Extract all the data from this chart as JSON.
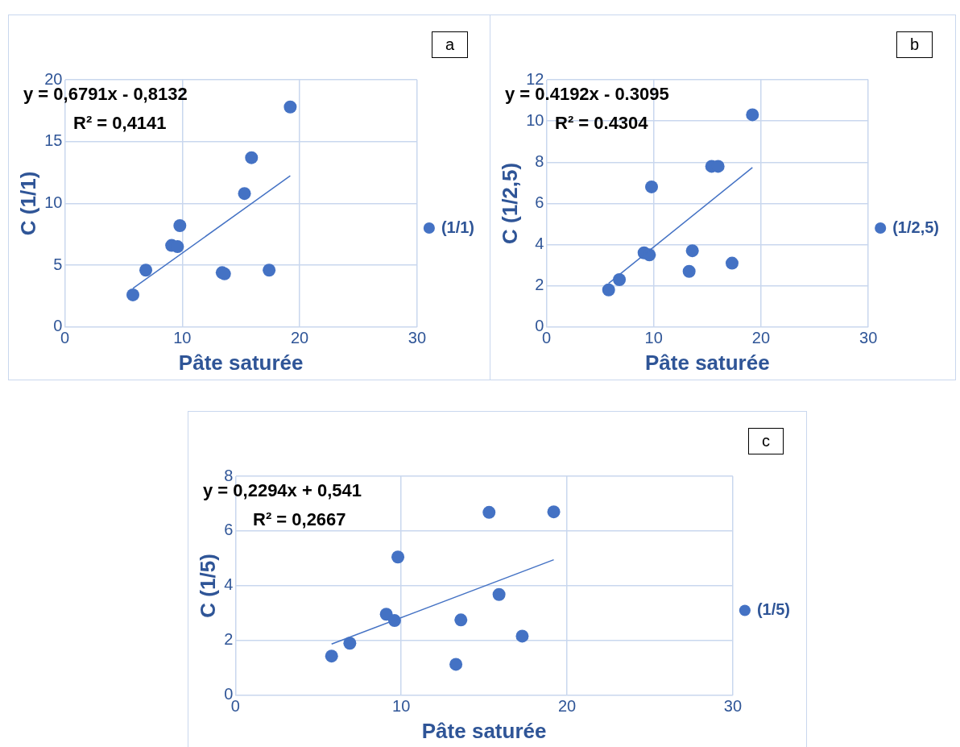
{
  "chart_data": [
    {
      "type": "scatter",
      "xlabel": "Pâte saturée",
      "ylabel": "C (1/1)",
      "xlim": [
        0,
        30
      ],
      "xticks": [
        0,
        10,
        20,
        30
      ],
      "ylim": [
        0,
        20
      ],
      "yticks": [
        0,
        5,
        10,
        15,
        20
      ],
      "grid": true,
      "legend": "right",
      "annotations": [
        "a",
        "y = 0,6791x - 0,8132",
        "R² = 0,4141"
      ],
      "series": [
        {
          "name": "(1/1)",
          "color": "#4472c4",
          "marker": "circle",
          "x": [
            5.8,
            6.9,
            9.1,
            9.6,
            9.8,
            13.4,
            13.6,
            15.3,
            15.9,
            17.4,
            19.2
          ],
          "values": [
            2.6,
            4.6,
            6.6,
            6.5,
            8.2,
            4.4,
            4.3,
            10.8,
            13.7,
            4.6,
            17.8
          ]
        },
        {
          "type": "line",
          "color": "#4472c4",
          "x": [
            5.8,
            19.2
          ],
          "values": [
            3.12,
            12.23
          ]
        }
      ]
    },
    {
      "type": "scatter",
      "xlabel": "Pâte saturée",
      "ylabel": "C (1/2,5)",
      "xlim": [
        0,
        30
      ],
      "xticks": [
        0,
        10,
        20,
        30
      ],
      "ylim": [
        0,
        12
      ],
      "yticks": [
        0,
        2,
        4,
        6,
        8,
        10,
        12
      ],
      "grid": true,
      "legend": "right",
      "annotations": [
        "b",
        "y = 0.4192x - 0.3095",
        "R² = 0.4304"
      ],
      "series": [
        {
          "name": "(1/2,5)",
          "color": "#4472c4",
          "marker": "circle",
          "x": [
            5.8,
            6.8,
            9.1,
            9.6,
            9.8,
            13.3,
            13.6,
            15.4,
            16.0,
            17.3,
            19.2
          ],
          "values": [
            1.8,
            2.3,
            3.6,
            3.5,
            6.8,
            2.7,
            3.7,
            7.8,
            7.8,
            3.1,
            10.3
          ]
        },
        {
          "type": "line",
          "color": "#4472c4",
          "x": [
            5.8,
            19.2
          ],
          "values": [
            2.12,
            7.74
          ]
        }
      ]
    },
    {
      "type": "scatter",
      "xlabel": "Pâte saturée",
      "ylabel": "C (1/5)",
      "xlim": [
        0,
        30
      ],
      "xticks": [
        0,
        10,
        20,
        30
      ],
      "ylim": [
        0,
        8
      ],
      "yticks": [
        0,
        2,
        4,
        6,
        8
      ],
      "grid": true,
      "legend": "right",
      "annotations": [
        "c",
        "y = 0,2294x + 0,541",
        "R² = 0,2667"
      ],
      "series": [
        {
          "name": "(1/5)",
          "color": "#4472c4",
          "marker": "circle",
          "x": [
            5.8,
            6.9,
            9.1,
            9.6,
            9.8,
            13.3,
            13.6,
            15.3,
            15.9,
            17.3,
            19.2
          ],
          "values": [
            1.43,
            1.9,
            2.96,
            2.73,
            5.05,
            1.13,
            2.75,
            6.68,
            3.68,
            2.16,
            6.7
          ]
        },
        {
          "type": "line",
          "color": "#4472c4",
          "x": [
            5.8,
            19.2
          ],
          "values": [
            1.87,
            4.95
          ]
        }
      ]
    }
  ]
}
